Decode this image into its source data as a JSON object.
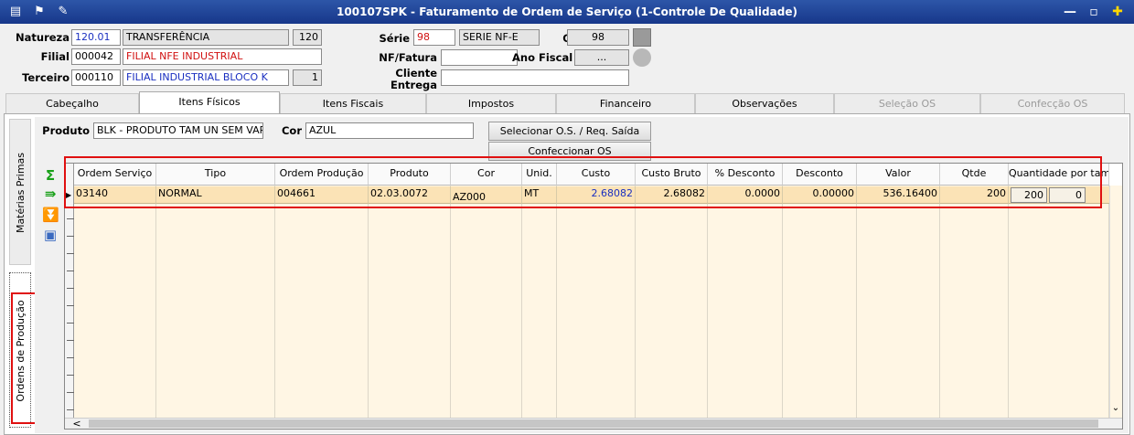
{
  "window": {
    "title": "100107SPK - Faturamento de Ordem de Serviço (1-Controle De Qualidade)"
  },
  "header": {
    "natureza": {
      "label": "Natureza",
      "code": "120.01",
      "description": "TRANSFERÊNCIA",
      "number": "120"
    },
    "filial": {
      "label": "Filial",
      "code": "000042",
      "description": "FILIAL NFE INDUSTRIAL"
    },
    "terceiro": {
      "label": "Terceiro",
      "code": "000110",
      "description": "FILIAL INDUSTRIAL BLOCO K",
      "number": "1"
    },
    "serie": {
      "label": "Série",
      "code": "98",
      "description": "SERIE NF-E"
    },
    "oficial": {
      "label": "Oficial",
      "value": "98"
    },
    "nf_fatura": {
      "label": "NF/Fatura"
    },
    "ano_fiscal": {
      "label": "Ano Fiscal",
      "value": "..."
    },
    "cliente_entrega": {
      "label_lines": [
        "Cliente",
        "Entrega"
      ]
    }
  },
  "tabs": [
    "Cabeçalho",
    "Itens Físicos",
    "Itens Fiscais",
    "Impostos",
    "Financeiro",
    "Observações",
    "Seleção OS",
    "Confecção OS"
  ],
  "side_tabs": [
    "Matérias Primas",
    "Ordens de Produção"
  ],
  "produto": {
    "label": "Produto",
    "value": "BLK - PRODUTO TAM UN SEM VARIA C",
    "cor_label": "Cor",
    "cor_value": "AZUL"
  },
  "buttons": [
    "Selecionar O.S. / Req. Saída",
    "Confeccionar OS"
  ],
  "grid": {
    "columns": [
      "Ordem Serviço",
      "Tipo",
      "Ordem Produção",
      "Produto",
      "Cor",
      "Unid.",
      "Custo",
      "Custo Bruto",
      "% Desconto",
      "Desconto",
      "Valor",
      "Qtde",
      "Quantidade por taman"
    ],
    "rows": [
      [
        "03140",
        "NORMAL",
        "004661",
        "02.03.0072",
        "AZ000",
        "MT",
        "2.68082",
        "2.68082",
        "0.0000",
        "0.00000",
        "536.16400",
        "200"
      ]
    ],
    "size_quantities": [
      [
        "200",
        "0"
      ]
    ]
  }
}
